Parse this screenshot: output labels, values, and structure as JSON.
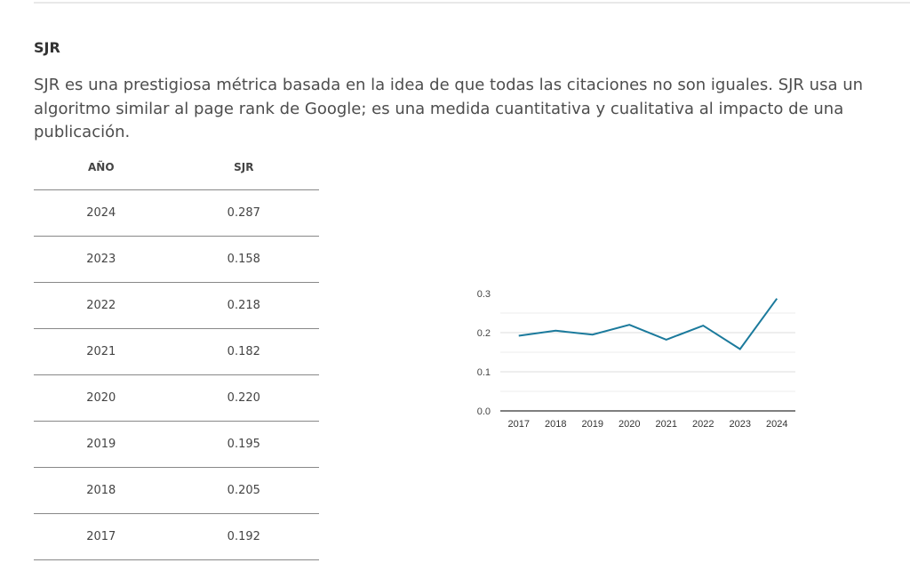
{
  "section": {
    "title": "SJR",
    "description": "SJR es una prestigiosa métrica basada en la idea de que todas las citaciones no son iguales. SJR usa un algoritmo similar al page rank de Google; es una medida cuantitativa y cualitativa al impacto de una publicación."
  },
  "table": {
    "headers": [
      "AÑO",
      "SJR"
    ],
    "rows": [
      [
        "2024",
        "0.287"
      ],
      [
        "2023",
        "0.158"
      ],
      [
        "2022",
        "0.218"
      ],
      [
        "2021",
        "0.182"
      ],
      [
        "2020",
        "0.220"
      ],
      [
        "2019",
        "0.195"
      ],
      [
        "2018",
        "0.205"
      ],
      [
        "2017",
        "0.192"
      ]
    ]
  },
  "chart_data": {
    "type": "line",
    "title": "",
    "xlabel": "",
    "ylabel": "",
    "categories": [
      "2017",
      "2018",
      "2019",
      "2020",
      "2021",
      "2022",
      "2023",
      "2024"
    ],
    "series": [
      {
        "name": "SJR",
        "values": [
          0.192,
          0.205,
          0.195,
          0.22,
          0.182,
          0.218,
          0.158,
          0.287
        ],
        "color": "#1b7a9c"
      }
    ],
    "ylim": [
      0,
      0.3
    ],
    "yticks": [
      "0.0",
      "0.1",
      "0.2",
      "0.3"
    ],
    "grid": true
  }
}
